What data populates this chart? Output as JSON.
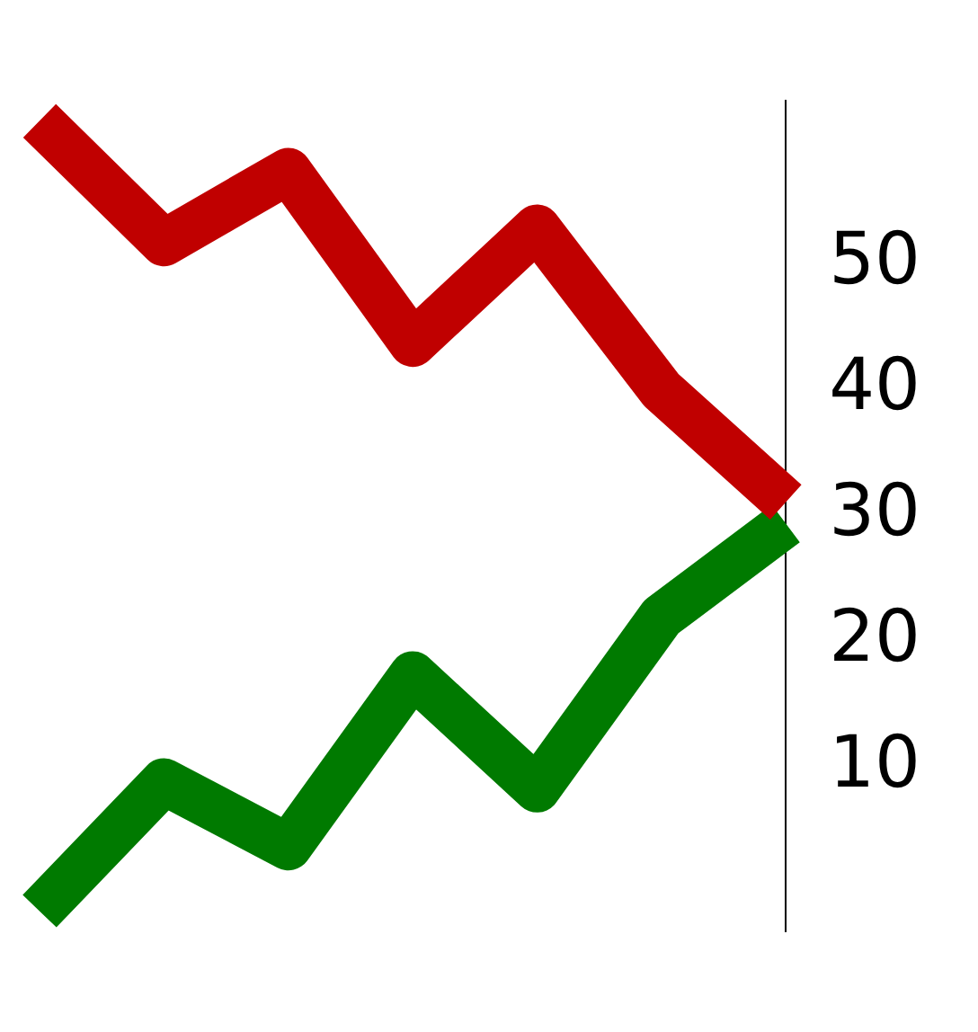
{
  "chart_data": {
    "type": "line",
    "categories": [
      null,
      null,
      null,
      null,
      null,
      null,
      null
    ],
    "series": [
      {
        "color": "#c00000",
        "values": [
          61.4,
          51.7,
          57.4,
          43.7,
          52.9,
          40,
          31.1
        ]
      },
      {
        "color": "#007a00",
        "values": [
          -1.4,
          8.9,
          3.7,
          17.4,
          8.3,
          22,
          29.4
        ]
      }
    ],
    "ylim": [
      -3,
      63
    ],
    "yticks": [
      10,
      20,
      30,
      40,
      50
    ],
    "grid": false,
    "legend": false,
    "marker": "none",
    "line_style": "solid",
    "tick_labels": "y"
  }
}
